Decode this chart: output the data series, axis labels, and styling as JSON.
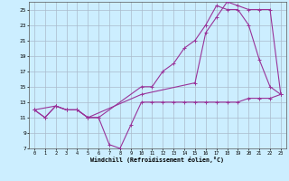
{
  "xlabel": "Windchill (Refroidissement éolien,°C)",
  "bg_color": "#cceeff",
  "grid_color": "#aabbcc",
  "line_color": "#993399",
  "xlim": [
    -0.5,
    23.5
  ],
  "ylim": [
    7,
    26
  ],
  "xticks": [
    0,
    1,
    2,
    3,
    4,
    5,
    6,
    7,
    8,
    9,
    10,
    11,
    12,
    13,
    14,
    15,
    16,
    17,
    18,
    19,
    20,
    21,
    22,
    23
  ],
  "yticks": [
    7,
    9,
    11,
    13,
    15,
    17,
    19,
    21,
    23,
    25
  ],
  "line1_x": [
    0,
    1,
    2,
    3,
    4,
    5,
    6,
    7,
    8,
    9,
    10,
    11,
    12,
    13,
    14,
    15,
    16,
    17,
    18,
    19,
    20,
    21,
    22,
    23
  ],
  "line1_y": [
    12,
    11,
    12.5,
    12,
    12,
    11,
    11,
    7.5,
    7,
    10,
    13,
    13,
    13,
    13,
    13,
    13,
    13,
    13,
    13,
    13,
    13.5,
    13.5,
    13.5,
    14
  ],
  "line2_x": [
    0,
    1,
    2,
    3,
    4,
    5,
    6,
    10,
    11,
    12,
    13,
    14,
    15,
    16,
    17,
    18,
    19,
    20,
    21,
    22,
    23
  ],
  "line2_y": [
    12,
    11,
    12.5,
    12,
    12,
    11,
    11,
    15,
    15,
    17,
    18,
    20,
    21,
    23,
    25.5,
    25,
    25,
    23,
    18.5,
    15,
    14
  ],
  "line3_x": [
    0,
    2,
    3,
    4,
    5,
    10,
    15,
    16,
    17,
    18,
    19,
    20,
    21,
    22,
    23
  ],
  "line3_y": [
    12,
    12.5,
    12,
    12,
    11,
    14,
    15.5,
    22,
    24,
    26,
    25.5,
    25,
    25,
    25,
    14
  ]
}
